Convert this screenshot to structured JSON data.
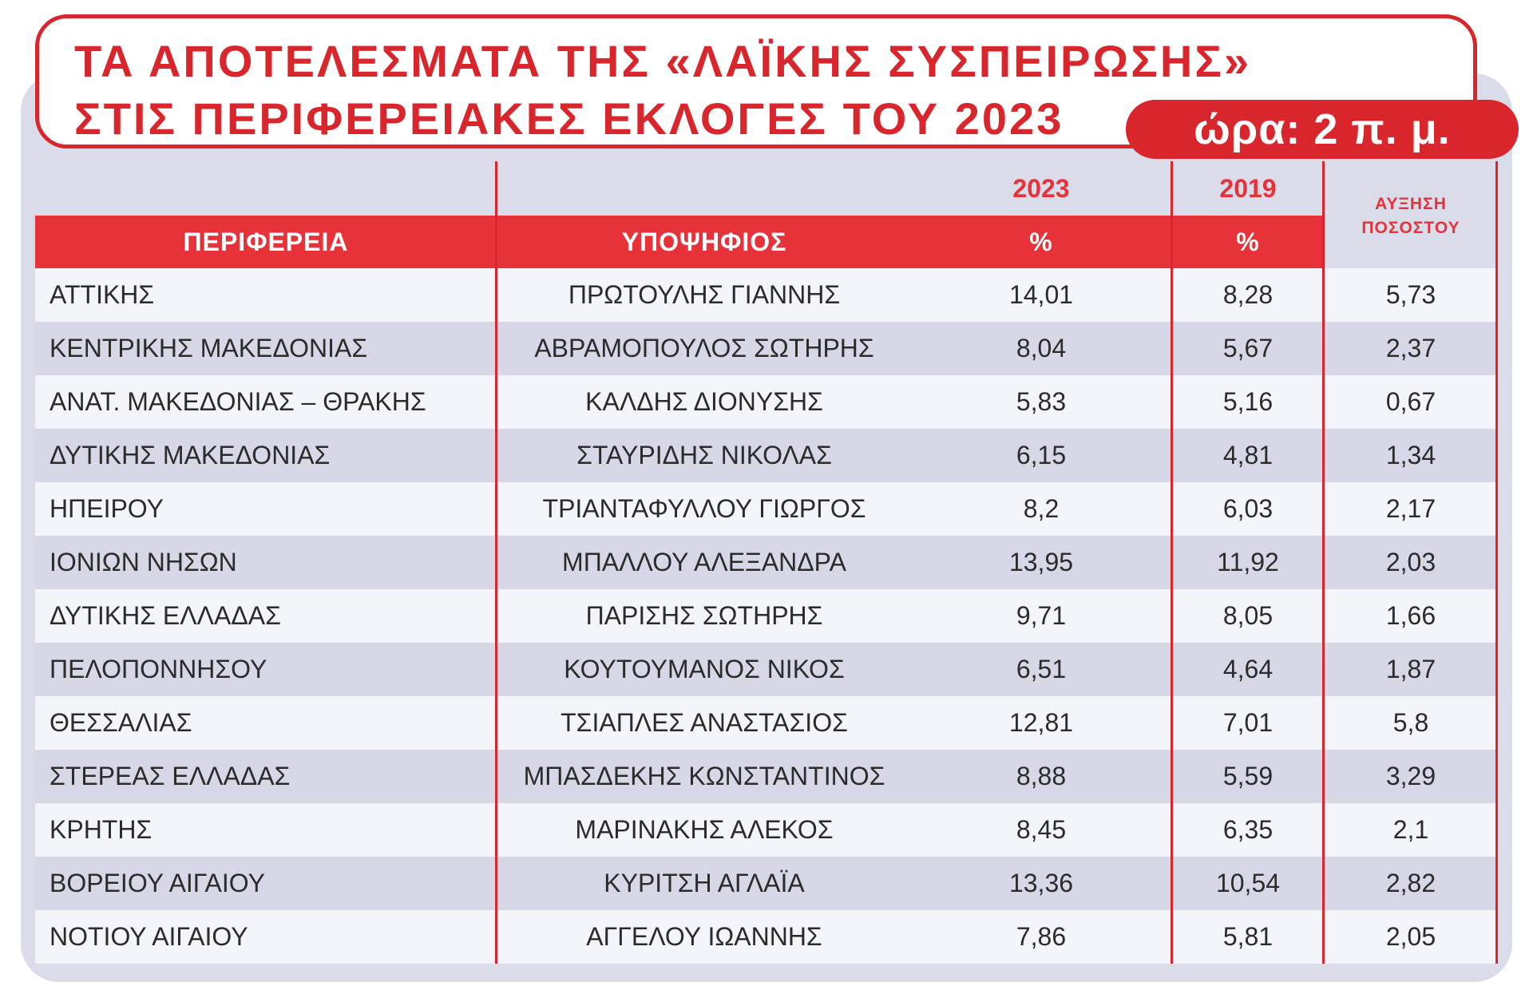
{
  "title": {
    "line1": "ΤΑ ΑΠΟΤΕΛΕΣΜΑΤΑ ΤΗΣ «ΛΑΪΚΗΣ ΣΥΣΠΕΙΡΩΣΗΣ»",
    "line2": "ΣΤΙΣ ΠΕΡΙΦΕΡΕΙΑΚΕΣ ΕΚΛΟΓΕΣ ΤΟΥ 2023",
    "time": "ώρα: 2 π. μ."
  },
  "table": {
    "years": {
      "y2023": "2023",
      "y2019": "2019"
    },
    "headers": {
      "region": "ΠΕΡΙΦΕΡΕΙΑ",
      "candidate": "ΥΠΟΨΗΦΙΟΣ",
      "pct2023": "%",
      "pct2019": "%",
      "increase_line1": "ΑΥΞΗΣΗ",
      "increase_line2": "ΠΟΣΟΣΤΟΥ"
    },
    "rows": [
      {
        "region": "ΑΤΤΙΚΗΣ",
        "candidate": "ΠΡΩΤΟΥΛΗΣ ΓΙΑΝΝΗΣ",
        "v2023": "14,01",
        "v2019": "8,28",
        "increase": "5,73"
      },
      {
        "region": "ΚΕΝΤΡΙΚΗΣ ΜΑΚΕΔΟΝΙΑΣ",
        "candidate": "ΑΒΡΑΜΟΠΟΥΛΟΣ ΣΩΤΗΡΗΣ",
        "v2023": "8,04",
        "v2019": "5,67",
        "increase": "2,37"
      },
      {
        "region": "ΑΝΑΤ. ΜΑΚΕΔΟΝΙΑΣ – ΘΡΑΚΗΣ",
        "candidate": "ΚΑΛΔΗΣ ΔΙΟΝΥΣΗΣ",
        "v2023": "5,83",
        "v2019": "5,16",
        "increase": "0,67"
      },
      {
        "region": "ΔΥΤΙΚΗΣ ΜΑΚΕΔΟΝΙΑΣ",
        "candidate": "ΣΤΑΥΡΙΔΗΣ ΝΙΚΟΛΑΣ",
        "v2023": "6,15",
        "v2019": "4,81",
        "increase": "1,34"
      },
      {
        "region": "ΗΠΕΙΡΟΥ",
        "candidate": "ΤΡΙΑΝΤΑΦΥΛΛΟΥ ΓΙΩΡΓΟΣ",
        "v2023": "8,2",
        "v2019": "6,03",
        "increase": "2,17"
      },
      {
        "region": "ΙΟΝΙΩΝ ΝΗΣΩΝ",
        "candidate": "ΜΠΑΛΛΟΥ ΑΛΕΞΑΝΔΡΑ",
        "v2023": "13,95",
        "v2019": "11,92",
        "increase": "2,03"
      },
      {
        "region": "ΔΥΤΙΚΗΣ ΕΛΛΑΔΑΣ",
        "candidate": "ΠΑΡΙΣΗΣ ΣΩΤΗΡΗΣ",
        "v2023": "9,71",
        "v2019": "8,05",
        "increase": "1,66"
      },
      {
        "region": "ΠΕΛΟΠΟΝΝΗΣΟΥ",
        "candidate": "ΚΟΥΤΟΥΜΑΝΟΣ ΝΙΚΟΣ",
        "v2023": "6,51",
        "v2019": "4,64",
        "increase": "1,87"
      },
      {
        "region": "ΘΕΣΣΑΛΙΑΣ",
        "candidate": "ΤΣΙΑΠΛΕΣ ΑΝΑΣΤΑΣΙΟΣ",
        "v2023": "12,81",
        "v2019": "7,01",
        "increase": "5,8"
      },
      {
        "region": "ΣΤΕΡΕΑΣ ΕΛΛΑΔΑΣ",
        "candidate": "ΜΠΑΣΔΕΚΗΣ ΚΩΝΣΤΑΝΤΙΝΟΣ",
        "v2023": "8,88",
        "v2019": "5,59",
        "increase": "3,29"
      },
      {
        "region": "ΚΡΗΤΗΣ",
        "candidate": "ΜΑΡΙΝΑΚΗΣ ΑΛΕΚΟΣ",
        "v2023": "8,45",
        "v2019": "6,35",
        "increase": "2,1"
      },
      {
        "region": "ΒΟΡΕΙΟΥ ΑΙΓΑΙΟΥ",
        "candidate": "ΚΥΡΙΤΣΗ ΑΓΛΑΪΑ",
        "v2023": "13,36",
        "v2019": "10,54",
        "increase": "2,82"
      },
      {
        "region": "ΝΟΤΙΟΥ ΑΙΓΑΙΟΥ",
        "candidate": "ΑΓΓΕΛΟΥ ΙΩΑΝΝΗΣ",
        "v2023": "7,86",
        "v2019": "5,81",
        "increase": "2,05"
      }
    ]
  },
  "colors": {
    "accent_red": "#d8262c",
    "header_red": "#e8323a",
    "panel_bg": "#dadcea",
    "row_light": "#f4f5fa",
    "row_dark": "#d6d8e8"
  }
}
